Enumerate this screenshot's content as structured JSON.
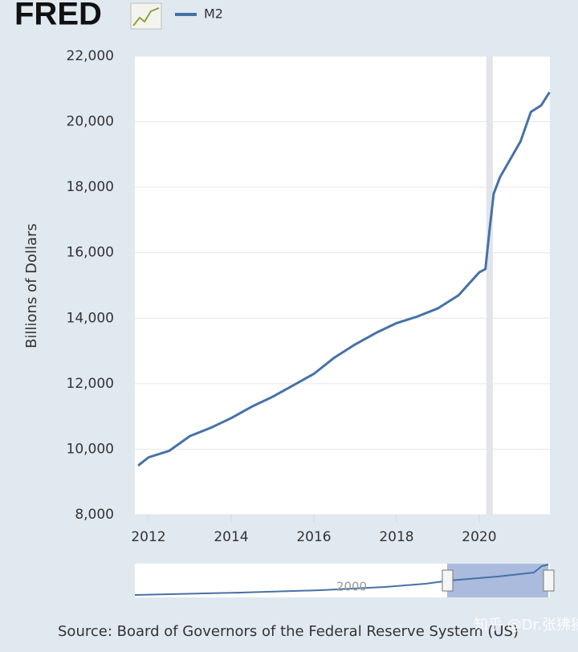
{
  "brand": "FRED",
  "chart_data": {
    "type": "line",
    "y_label": "Billions of Dollars",
    "x": [
      2011.75,
      2012.0,
      2012.5,
      2013.0,
      2013.5,
      2014.0,
      2014.5,
      2015.0,
      2015.5,
      2016.0,
      2016.5,
      2017.0,
      2017.5,
      2018.0,
      2018.5,
      2019.0,
      2019.5,
      2020.0,
      2020.15,
      2020.25,
      2020.35,
      2020.5,
      2021.0,
      2021.25,
      2021.5,
      2021.7
    ],
    "series": [
      {
        "name": "M2",
        "color": "#4572a7",
        "values": [
          9500,
          9750,
          9950,
          10400,
          10650,
          10950,
          11300,
          11600,
          11950,
          12300,
          12800,
          13200,
          13550,
          13850,
          14050,
          14300,
          14700,
          15400,
          15500,
          16700,
          17800,
          18300,
          19400,
          20300,
          20500,
          20900
        ]
      }
    ],
    "shaded_ranges": [
      [
        2020.17,
        2020.33
      ]
    ],
    "xlim": [
      2011.67,
      2021.71
    ],
    "xticks": [
      2012,
      2014,
      2016,
      2018,
      2020
    ],
    "ylim": [
      8000,
      22000
    ],
    "yticks": [
      {
        "value": 8000,
        "label": "8,000"
      },
      {
        "value": 10000,
        "label": "10,000"
      },
      {
        "value": 12000,
        "label": "12,000"
      },
      {
        "value": 14000,
        "label": "14,000"
      },
      {
        "value": 16000,
        "label": "16,000"
      },
      {
        "value": 18000,
        "label": "18,000"
      },
      {
        "value": 20000,
        "label": "20,000"
      },
      {
        "value": 22000,
        "label": "22,000"
      }
    ],
    "grid": true,
    "navigator_label": "2000",
    "source": "Source: Board of Governors of the Federal Reserve System (US)"
  },
  "watermark": "知乎 @Dr.张狒狒"
}
